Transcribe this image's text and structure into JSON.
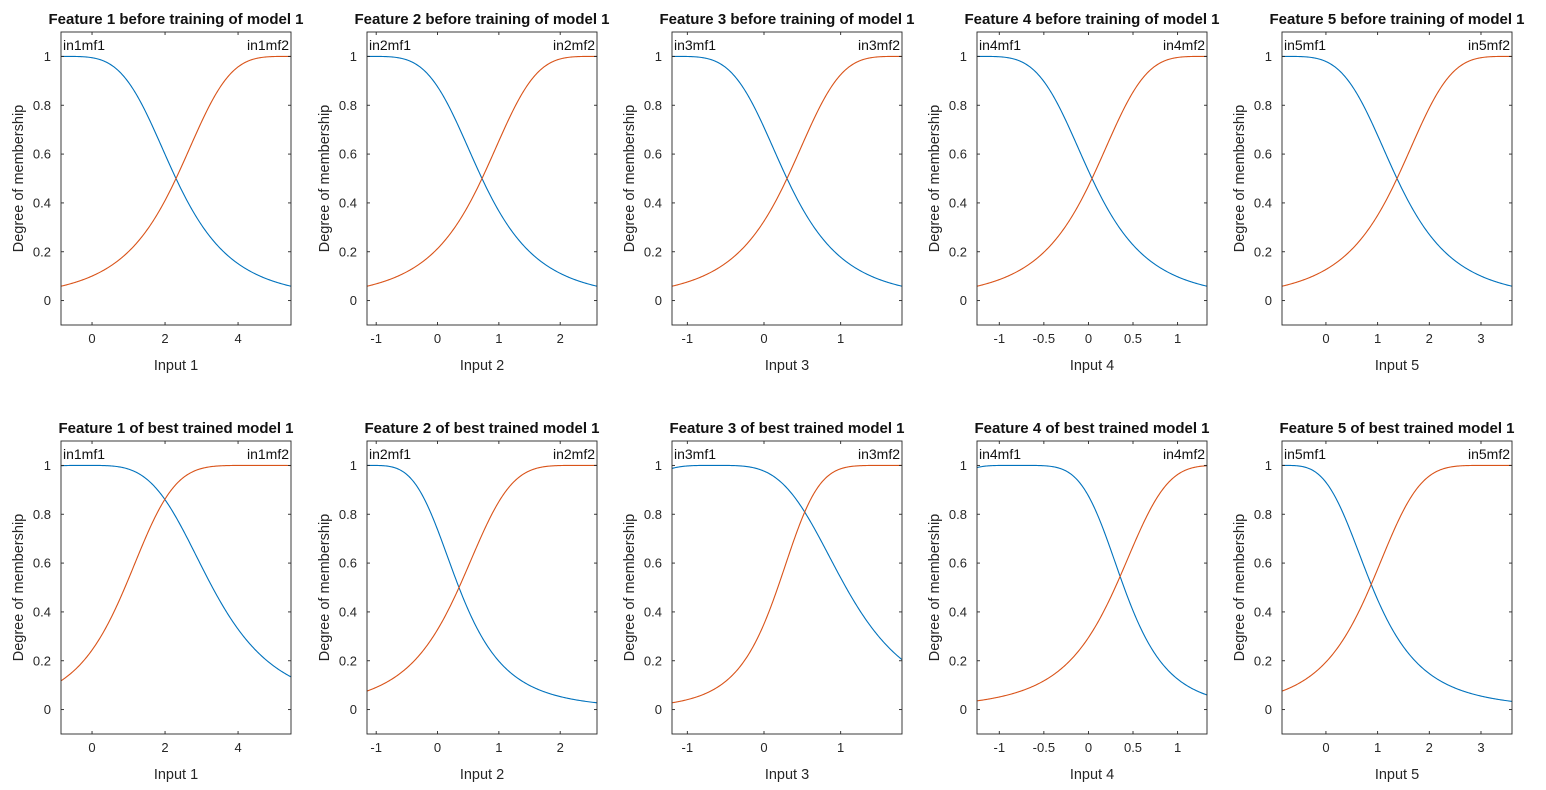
{
  "figure": {
    "colors": {
      "mf1": "#0072BD",
      "mf2": "#D95319",
      "axes": "#262626",
      "background": "#ffffff"
    }
  },
  "chart_data": [
    {
      "type": "line",
      "row": "before",
      "title": "Feature 1 before training of model 1",
      "xlabel": "Input 1",
      "ylabel": "Degree of membership",
      "xlim": [
        -0.85,
        5.45
      ],
      "ylim": [
        -0.1,
        1.1
      ],
      "xticks": [
        0,
        2,
        4
      ],
      "xtick_labels": [
        "0",
        "2",
        "4"
      ],
      "yticks": [
        0,
        0.2,
        0.4,
        0.6,
        0.8,
        1
      ],
      "ytick_labels": [
        "0",
        "0.2",
        "0.4",
        "0.6",
        "0.8",
        "1"
      ],
      "series": [
        {
          "name": "in1mf1",
          "kind": "gbell",
          "params": {
            "a": 3.15,
            "b": 2,
            "c": -0.85
          }
        },
        {
          "name": "in1mf2",
          "kind": "gbell",
          "params": {
            "a": 3.15,
            "b": 2,
            "c": 5.45
          }
        }
      ]
    },
    {
      "type": "line",
      "row": "before",
      "title": "Feature 2 before training of model 1",
      "xlabel": "Input 2",
      "ylabel": "Degree of membership",
      "xlim": [
        -1.15,
        2.6
      ],
      "ylim": [
        -0.1,
        1.1
      ],
      "xticks": [
        -1,
        0,
        1,
        2
      ],
      "xtick_labels": [
        "-1",
        "0",
        "1",
        "2"
      ],
      "yticks": [
        0,
        0.2,
        0.4,
        0.6,
        0.8,
        1
      ],
      "ytick_labels": [
        "0",
        "0.2",
        "0.4",
        "0.6",
        "0.8",
        "1"
      ],
      "series": [
        {
          "name": "in2mf1",
          "kind": "gbell",
          "params": {
            "a": 1.875,
            "b": 2,
            "c": -1.15
          }
        },
        {
          "name": "in2mf2",
          "kind": "gbell",
          "params": {
            "a": 1.875,
            "b": 2,
            "c": 2.6
          }
        }
      ]
    },
    {
      "type": "line",
      "row": "before",
      "title": "Feature 3 before training of model 1",
      "xlabel": "Input 3",
      "ylabel": "Degree of membership",
      "xlim": [
        -1.2,
        1.8
      ],
      "ylim": [
        -0.1,
        1.1
      ],
      "xticks": [
        -1,
        0,
        1
      ],
      "xtick_labels": [
        "-1",
        "0",
        "1"
      ],
      "yticks": [
        0,
        0.2,
        0.4,
        0.6,
        0.8,
        1
      ],
      "ytick_labels": [
        "0",
        "0.2",
        "0.4",
        "0.6",
        "0.8",
        "1"
      ],
      "series": [
        {
          "name": "in3mf1",
          "kind": "gbell",
          "params": {
            "a": 1.5,
            "b": 2,
            "c": -1.2
          }
        },
        {
          "name": "in3mf2",
          "kind": "gbell",
          "params": {
            "a": 1.5,
            "b": 2,
            "c": 1.8
          }
        }
      ]
    },
    {
      "type": "line",
      "row": "before",
      "title": "Feature 4 before training of model 1",
      "xlabel": "Input 4",
      "ylabel": "Degree of membership",
      "xlim": [
        -1.25,
        1.33
      ],
      "ylim": [
        -0.1,
        1.1
      ],
      "xticks": [
        -1,
        -0.5,
        0,
        0.5,
        1
      ],
      "xtick_labels": [
        "-1",
        "-0.5",
        "0",
        "0.5",
        "1"
      ],
      "yticks": [
        0,
        0.2,
        0.4,
        0.6,
        0.8,
        1
      ],
      "ytick_labels": [
        "0",
        "0.2",
        "0.4",
        "0.6",
        "0.8",
        "1"
      ],
      "series": [
        {
          "name": "in4mf1",
          "kind": "gbell",
          "params": {
            "a": 1.29,
            "b": 2,
            "c": -1.25
          }
        },
        {
          "name": "in4mf2",
          "kind": "gbell",
          "params": {
            "a": 1.29,
            "b": 2,
            "c": 1.33
          }
        }
      ]
    },
    {
      "type": "line",
      "row": "before",
      "title": "Feature 5 before training of model 1",
      "xlabel": "Input 5",
      "ylabel": "Degree of membership",
      "xlim": [
        -0.85,
        3.6
      ],
      "ylim": [
        -0.1,
        1.1
      ],
      "xticks": [
        0,
        1,
        2,
        3
      ],
      "xtick_labels": [
        "0",
        "1",
        "2",
        "3"
      ],
      "yticks": [
        0,
        0.2,
        0.4,
        0.6,
        0.8,
        1
      ],
      "ytick_labels": [
        "0",
        "0.2",
        "0.4",
        "0.6",
        "0.8",
        "1"
      ],
      "series": [
        {
          "name": "in5mf1",
          "kind": "gbell",
          "params": {
            "a": 2.225,
            "b": 2,
            "c": -0.85
          }
        },
        {
          "name": "in5mf2",
          "kind": "gbell",
          "params": {
            "a": 2.225,
            "b": 2,
            "c": 3.6
          }
        }
      ]
    },
    {
      "type": "line",
      "row": "trained",
      "title": "Feature 1 of best trained model 1",
      "xlabel": "Input 1",
      "ylabel": "Degree of membership",
      "xlim": [
        -0.85,
        5.45
      ],
      "ylim": [
        -0.1,
        1.1
      ],
      "xticks": [
        0,
        2,
        4
      ],
      "xtick_labels": [
        "0",
        "2",
        "4"
      ],
      "yticks": [
        0,
        0.2,
        0.4,
        0.6,
        0.8,
        1
      ],
      "ytick_labels": [
        "0",
        "0.2",
        "0.4",
        "0.6",
        "0.8",
        "1"
      ],
      "series": [
        {
          "name": "in1mf1",
          "kind": "gbell",
          "params": {
            "a": 3.5,
            "b": 1.95,
            "c": -0.2
          }
        },
        {
          "name": "in1mf2",
          "kind": "gbell",
          "params": {
            "a": 3.7,
            "b": 2.6,
            "c": 4.6
          }
        }
      ]
    },
    {
      "type": "line",
      "row": "trained",
      "title": "Feature 2 of best trained model 1",
      "xlabel": "Input 2",
      "ylabel": "Degree of membership",
      "xlim": [
        -1.15,
        2.6
      ],
      "ylim": [
        -0.1,
        1.1
      ],
      "xticks": [
        -1,
        0,
        1,
        2
      ],
      "xtick_labels": [
        "-1",
        "0",
        "1",
        "2"
      ],
      "yticks": [
        0,
        0.2,
        0.4,
        0.6,
        0.8,
        1
      ],
      "ytick_labels": [
        "0",
        "0.2",
        "0.4",
        "0.6",
        "0.8",
        "1"
      ],
      "series": [
        {
          "name": "in2mf1",
          "kind": "gbell",
          "params": {
            "a": 1.5,
            "b": 1.94,
            "c": -1.15
          }
        },
        {
          "name": "in2mf2",
          "kind": "gbell",
          "params": {
            "a": 2.02,
            "b": 2.25,
            "c": 2.37
          }
        }
      ]
    },
    {
      "type": "line",
      "row": "trained",
      "title": "Feature 3 of best trained model 1",
      "xlabel": "Input 3",
      "ylabel": "Degree of membership",
      "xlim": [
        -1.2,
        1.8
      ],
      "ylim": [
        -0.1,
        1.1
      ],
      "xticks": [
        -1,
        0,
        1
      ],
      "xtick_labels": [
        "-1",
        "0",
        "1"
      ],
      "yticks": [
        0,
        0.2,
        0.4,
        0.6,
        0.8,
        1
      ],
      "ytick_labels": [
        "0",
        "0.2",
        "0.4",
        "0.6",
        "0.8",
        "1"
      ],
      "series": [
        {
          "name": "in3mf1",
          "kind": "gbell",
          "params": {
            "a": 1.72,
            "b": 1.92,
            "c": -0.65
          }
        },
        {
          "name": "in3mf2",
          "kind": "gbell",
          "params": {
            "a": 1.52,
            "b": 2.75,
            "c": 1.7
          }
        }
      ]
    },
    {
      "type": "line",
      "row": "trained",
      "title": "Feature 4 of best trained model 1",
      "xlabel": "Input 4",
      "ylabel": "Degree of membership",
      "xlim": [
        -1.25,
        1.33
      ],
      "ylim": [
        -0.1,
        1.1
      ],
      "xticks": [
        -1,
        -0.5,
        0,
        0.5,
        1
      ],
      "xtick_labels": [
        "-1",
        "-0.5",
        "0",
        "0.5",
        "1"
      ],
      "yticks": [
        0,
        0.2,
        0.4,
        0.6,
        0.8,
        1
      ],
      "ytick_labels": [
        "0",
        "0.2",
        "0.4",
        "0.6",
        "0.8",
        "1"
      ],
      "series": [
        {
          "name": "in4mf1",
          "kind": "gbell",
          "params": {
            "a": 1.2,
            "b": 2.4,
            "c": -0.8
          }
        },
        {
          "name": "in4mf2",
          "kind": "gbell",
          "params": {
            "a": 1.3,
            "b": 2.1,
            "c": 1.6
          }
        }
      ]
    },
    {
      "type": "line",
      "row": "trained",
      "title": "Feature 5 of best trained model 1",
      "xlabel": "Input 5",
      "ylabel": "Degree of membership",
      "xlim": [
        -0.85,
        3.6
      ],
      "ylim": [
        -0.1,
        1.1
      ],
      "xticks": [
        0,
        1,
        2,
        3
      ],
      "xtick_labels": [
        "0",
        "1",
        "2",
        "3"
      ],
      "yticks": [
        0,
        0.2,
        0.4,
        0.6,
        0.8,
        1
      ],
      "ytick_labels": [
        "0",
        "0.2",
        "0.4",
        "0.6",
        "0.8",
        "1"
      ],
      "series": [
        {
          "name": "in5mf1",
          "kind": "gbell",
          "params": {
            "a": 1.75,
            "b": 1.8,
            "c": -0.85
          }
        },
        {
          "name": "in5mf2",
          "kind": "gbell",
          "params": {
            "a": 2.35,
            "b": 2.3,
            "c": 3.2
          }
        }
      ]
    }
  ]
}
